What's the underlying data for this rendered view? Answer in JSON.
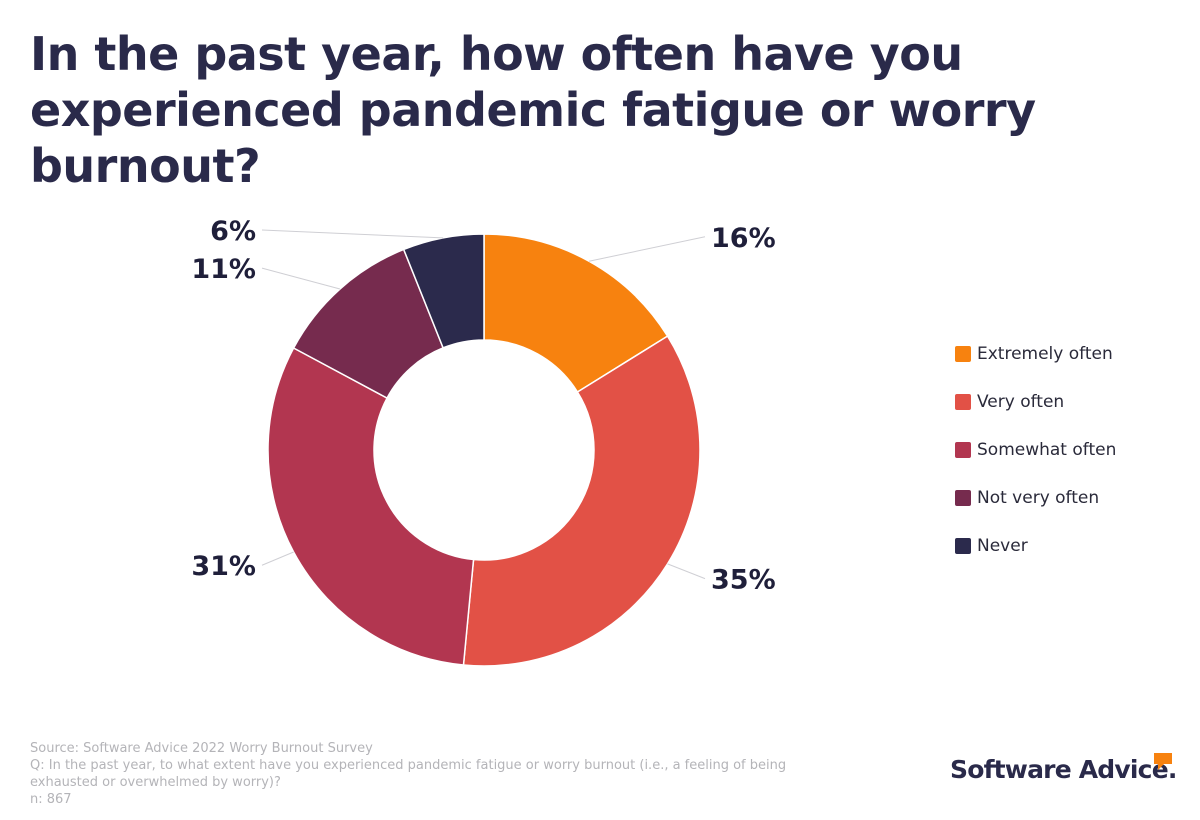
{
  "title": "In the past year, how often have you experienced pandemic fatigue or worry burnout?",
  "chart_data": {
    "type": "pie",
    "variant": "donut",
    "categories": [
      "Extremely often",
      "Very often",
      "Somewhat often",
      "Not very often",
      "Never"
    ],
    "values": [
      16,
      35,
      31,
      11,
      6
    ],
    "labels": [
      "16%",
      "35%",
      "31%",
      "11%",
      "6%"
    ],
    "colors": [
      "#f7820f",
      "#e25146",
      "#b23650",
      "#762b4e",
      "#2b2a4c"
    ],
    "legend_position": "right"
  },
  "footnote": {
    "source": "Source: Software Advice 2022 Worry Burnout Survey",
    "question": "Q: In the past year, to what extent have you experienced pandemic fatigue or worry burnout (i.e., a feeling of being exhausted or overwhelmed by worry)?",
    "sample": "n: 867"
  },
  "logo": {
    "text": "Software Advice.",
    "accent_color": "#f7820f"
  }
}
